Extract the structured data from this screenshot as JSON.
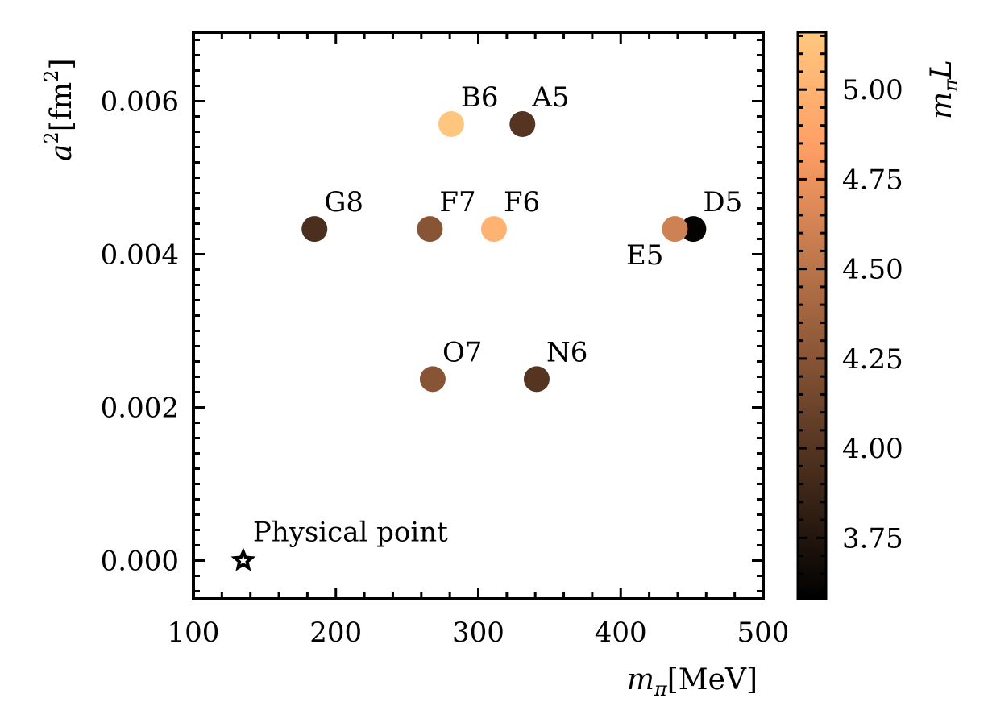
{
  "chart_data": {
    "type": "scatter",
    "title": "",
    "xlabel": {
      "symbol": "m",
      "sub": "π",
      "unit": "[MeV]"
    },
    "ylabel": {
      "symbol": "a",
      "sup": "2",
      "unit_open": "[fm",
      "unit_sup": "2",
      "unit_close": "]"
    },
    "xlim": [
      100,
      500
    ],
    "ylim": [
      -0.0005,
      0.0069
    ],
    "xticks": [
      {
        "value": 100,
        "label": "100"
      },
      {
        "value": 200,
        "label": "200"
      },
      {
        "value": 300,
        "label": "300"
      },
      {
        "value": 400,
        "label": "400"
      },
      {
        "value": 500,
        "label": "500"
      }
    ],
    "yticks": [
      {
        "value": 0.0,
        "label": "0.000"
      },
      {
        "value": 0.002,
        "label": "0.002"
      },
      {
        "value": 0.004,
        "label": "0.004"
      },
      {
        "value": 0.006,
        "label": "0.006"
      }
    ],
    "points": [
      {
        "name": "B6",
        "x": 281,
        "y": 0.0057,
        "mpiL": 5.15,
        "label_pos": "above-right"
      },
      {
        "name": "A5",
        "x": 331,
        "y": 0.0057,
        "mpiL": 4.0,
        "label_pos": "above-right"
      },
      {
        "name": "G8",
        "x": 185,
        "y": 0.00433,
        "mpiL": 3.95,
        "label_pos": "above-right"
      },
      {
        "name": "F7",
        "x": 266,
        "y": 0.00433,
        "mpiL": 4.25,
        "label_pos": "above-right"
      },
      {
        "name": "F6",
        "x": 311,
        "y": 0.00433,
        "mpiL": 5.0,
        "label_pos": "above-right"
      },
      {
        "name": "D5",
        "x": 451,
        "y": 0.00433,
        "mpiL": 3.6,
        "label_pos": "above-right"
      },
      {
        "name": "E5",
        "x": 438,
        "y": 0.00433,
        "mpiL": 4.6,
        "label_pos": "below-left"
      },
      {
        "name": "O7",
        "x": 268,
        "y": 0.00237,
        "mpiL": 4.25,
        "label_pos": "above-right"
      },
      {
        "name": "N6",
        "x": 341,
        "y": 0.00237,
        "mpiL": 4.0,
        "label_pos": "above-right"
      }
    ],
    "physical_point": {
      "name": "Physical point",
      "x": 135,
      "y": 0.0,
      "marker": "star"
    },
    "colorbar": {
      "label": {
        "symbol": "m",
        "sub": "π",
        "tail": "L"
      },
      "range": [
        3.58,
        5.16
      ],
      "colormap": "copper",
      "ticks": [
        {
          "value": 3.75,
          "label": "3.75"
        },
        {
          "value": 4.0,
          "label": "4.00"
        },
        {
          "value": 4.25,
          "label": "4.25"
        },
        {
          "value": 4.5,
          "label": "4.50"
        },
        {
          "value": 4.75,
          "label": "4.75"
        },
        {
          "value": 5.0,
          "label": "5.00"
        }
      ],
      "minor_step": 0.05
    }
  }
}
